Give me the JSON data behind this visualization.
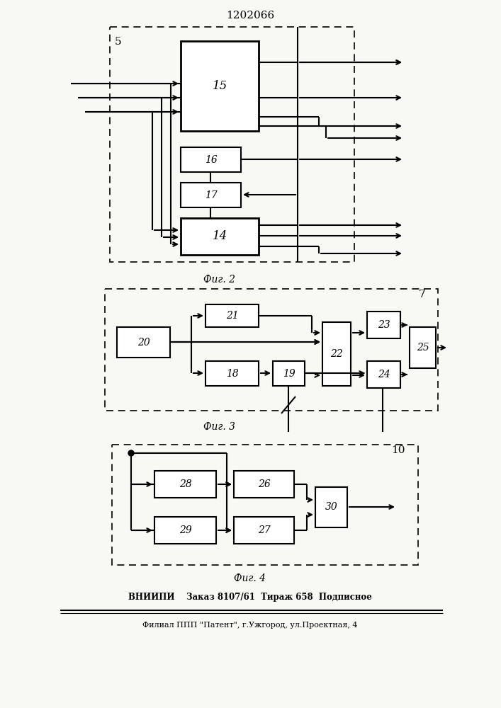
{
  "title": "1202066",
  "fig2_label": "5",
  "fig3_label": "7",
  "fig4_label": "10",
  "caption1": "Фиг. 2",
  "caption2": "Фиг. 3",
  "caption3": "Фиг. 4",
  "footer1": "ВНИИПИ    Заказ 8107/61  Тираж 658  Подписное",
  "footer2": "Филиал ППП \"Патент\", г.Ужгород, ул.Проектная, 4",
  "bg_color": "#f8f8f4",
  "box_color": "#000000",
  "line_color": "#000000"
}
